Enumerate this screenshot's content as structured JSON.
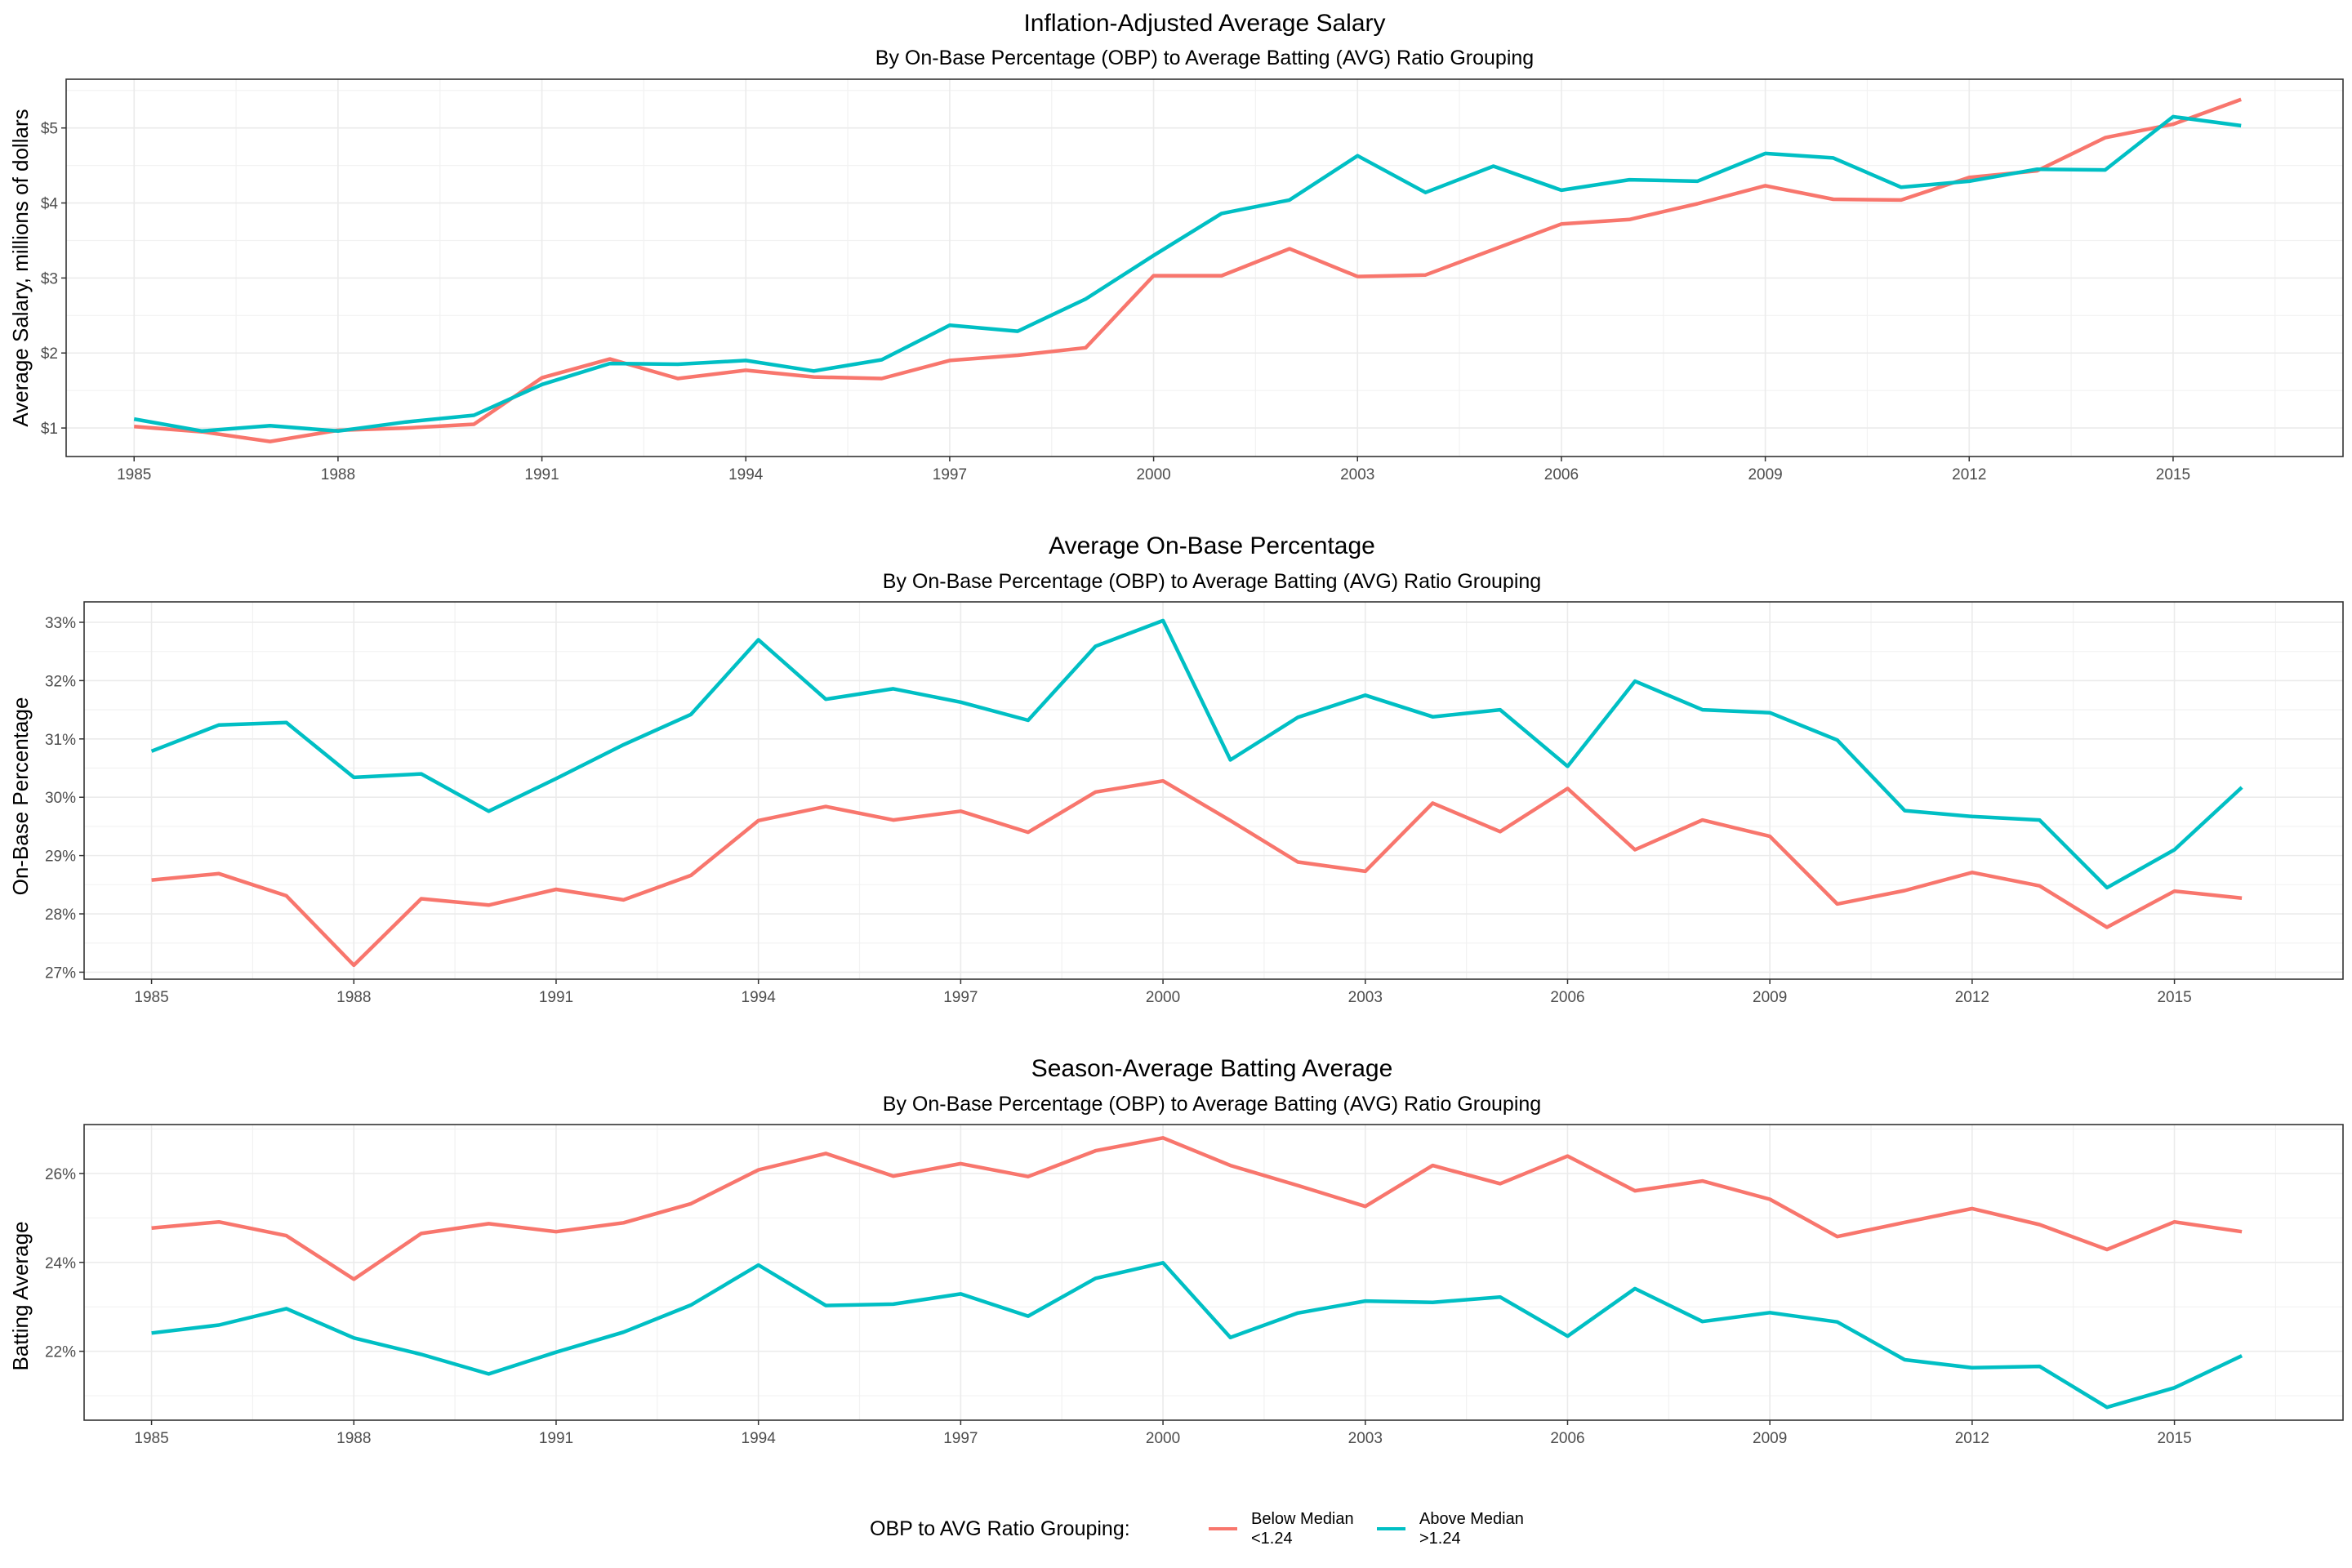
{
  "legend": {
    "title": "OBP to AVG Ratio Grouping:",
    "items": [
      {
        "line1": "Below Median",
        "line2": "<1.24",
        "color": "#F8766D"
      },
      {
        "line1": "Above Median",
        "line2": ">1.24",
        "color": "#00BFC4"
      }
    ]
  },
  "chart_data": [
    {
      "type": "line",
      "title": "Inflation-Adjusted Average Salary",
      "subtitle": "By On-Base Percentage (OBP) to Average Batting (AVG) Ratio Grouping",
      "xlabel": "",
      "ylabel": "Average Salary, millions of dollars",
      "xlim": [
        1984,
        2017.5
      ],
      "ylim": [
        0.62,
        5.65
      ],
      "x_ticks": [
        1985,
        1988,
        1991,
        1994,
        1997,
        2000,
        2003,
        2006,
        2009,
        2012,
        2015
      ],
      "y_ticks": [
        1,
        2,
        3,
        4,
        5
      ],
      "y_tick_labels": [
        "$1",
        "$2",
        "$3",
        "$4",
        "$5"
      ],
      "grid": true,
      "x": [
        1985,
        1986,
        1987,
        1988,
        1989,
        1990,
        1991,
        1992,
        1993,
        1994,
        1995,
        1996,
        1997,
        1998,
        1999,
        2000,
        2001,
        2002,
        2003,
        2004,
        2005,
        2006,
        2007,
        2008,
        2009,
        2010,
        2011,
        2012,
        2013,
        2014,
        2015,
        2016
      ],
      "series": [
        {
          "name": "Below Median <1.24",
          "color": "#F8766D",
          "values": [
            1.02,
            0.95,
            0.82,
            0.97,
            1.0,
            1.05,
            1.67,
            1.92,
            1.66,
            1.77,
            1.68,
            1.66,
            1.9,
            1.97,
            2.07,
            3.03,
            3.03,
            3.39,
            3.02,
            3.04,
            3.38,
            3.72,
            3.78,
            3.99,
            4.23,
            4.05,
            4.04,
            4.34,
            4.43,
            4.87,
            5.05,
            5.38
          ]
        },
        {
          "name": "Above Median >1.24",
          "color": "#00BFC4",
          "values": [
            1.12,
            0.96,
            1.03,
            0.96,
            1.08,
            1.17,
            1.58,
            1.86,
            1.85,
            1.9,
            1.76,
            1.91,
            2.37,
            2.29,
            2.72,
            3.3,
            3.86,
            4.04,
            4.63,
            4.14,
            4.49,
            4.17,
            4.31,
            4.29,
            4.66,
            4.6,
            4.21,
            4.29,
            4.45,
            4.44,
            5.15,
            5.03
          ]
        }
      ]
    },
    {
      "type": "line",
      "title": "Average On-Base Percentage",
      "subtitle": "By On-Base Percentage (OBP) to Average Batting (AVG) Ratio Grouping",
      "xlabel": "",
      "ylabel": "On-Base Percentage",
      "xlim": [
        1984,
        2017.5
      ],
      "ylim": [
        26.88,
        33.35
      ],
      "x_ticks": [
        1985,
        1988,
        1991,
        1994,
        1997,
        2000,
        2003,
        2006,
        2009,
        2012,
        2015
      ],
      "y_ticks": [
        27,
        28,
        29,
        30,
        31,
        32,
        33
      ],
      "y_tick_labels": [
        "27%",
        "28%",
        "29%",
        "30%",
        "31%",
        "32%",
        "33%"
      ],
      "grid": true,
      "x": [
        1985,
        1986,
        1987,
        1988,
        1989,
        1990,
        1991,
        1992,
        1993,
        1994,
        1995,
        1996,
        1997,
        1998,
        1999,
        2000,
        2001,
        2002,
        2003,
        2004,
        2005,
        2006,
        2007,
        2008,
        2009,
        2010,
        2011,
        2012,
        2013,
        2014,
        2015,
        2016
      ],
      "series": [
        {
          "name": "Below Median <1.24",
          "color": "#F8766D",
          "values": [
            28.58,
            28.69,
            28.31,
            27.12,
            28.26,
            28.15,
            28.42,
            28.24,
            28.66,
            29.6,
            29.84,
            29.61,
            29.76,
            29.4,
            30.09,
            30.28,
            29.6,
            28.89,
            28.73,
            29.9,
            29.41,
            30.15,
            29.1,
            29.61,
            29.33,
            28.17,
            28.4,
            28.71,
            28.48,
            27.77,
            28.39,
            28.27
          ]
        },
        {
          "name": "Above Median >1.24",
          "color": "#00BFC4",
          "values": [
            30.79,
            31.24,
            31.28,
            30.34,
            30.4,
            29.76,
            30.32,
            30.9,
            31.42,
            32.7,
            31.68,
            31.86,
            31.63,
            31.32,
            32.59,
            33.03,
            30.64,
            31.37,
            31.75,
            31.38,
            31.5,
            30.53,
            31.99,
            31.5,
            31.45,
            30.98,
            29.77,
            29.67,
            29.61,
            28.45,
            29.1,
            30.17
          ]
        }
      ]
    },
    {
      "type": "line",
      "title": "Season-Average Batting Average",
      "subtitle": "By On-Base Percentage (OBP) to Average Batting (AVG) Ratio Grouping",
      "xlabel": "",
      "ylabel": "Batting Average",
      "xlim": [
        1984,
        2017.5
      ],
      "ylim": [
        20.45,
        27.1
      ],
      "x_ticks": [
        1985,
        1988,
        1991,
        1994,
        1997,
        2000,
        2003,
        2006,
        2009,
        2012,
        2015
      ],
      "y_ticks": [
        22,
        24,
        26
      ],
      "y_tick_labels": [
        "22%",
        "24%",
        "26%"
      ],
      "grid": true,
      "x": [
        1985,
        1986,
        1987,
        1988,
        1989,
        1990,
        1991,
        1992,
        1993,
        1994,
        1995,
        1996,
        1997,
        1998,
        1999,
        2000,
        2001,
        2002,
        2003,
        2004,
        2005,
        2006,
        2007,
        2008,
        2009,
        2010,
        2011,
        2012,
        2013,
        2014,
        2015,
        2016
      ],
      "series": [
        {
          "name": "Below Median <1.24",
          "color": "#F8766D",
          "values": [
            24.77,
            24.91,
            24.6,
            23.62,
            24.65,
            24.87,
            24.69,
            24.89,
            25.32,
            26.08,
            26.45,
            25.94,
            26.22,
            25.93,
            26.51,
            26.8,
            26.18,
            25.73,
            25.26,
            26.18,
            25.77,
            26.39,
            25.61,
            25.83,
            25.42,
            24.58,
            24.9,
            25.21,
            24.85,
            24.29,
            24.91,
            24.69
          ]
        },
        {
          "name": "Above Median >1.24",
          "color": "#00BFC4",
          "values": [
            22.41,
            22.59,
            22.96,
            22.3,
            21.93,
            21.49,
            21.98,
            22.43,
            23.04,
            23.94,
            23.03,
            23.06,
            23.29,
            22.79,
            23.64,
            23.99,
            22.31,
            22.86,
            23.13,
            23.1,
            23.22,
            22.34,
            23.41,
            22.67,
            22.87,
            22.66,
            21.81,
            21.63,
            21.66,
            20.74,
            21.18,
            21.9
          ]
        }
      ]
    }
  ]
}
